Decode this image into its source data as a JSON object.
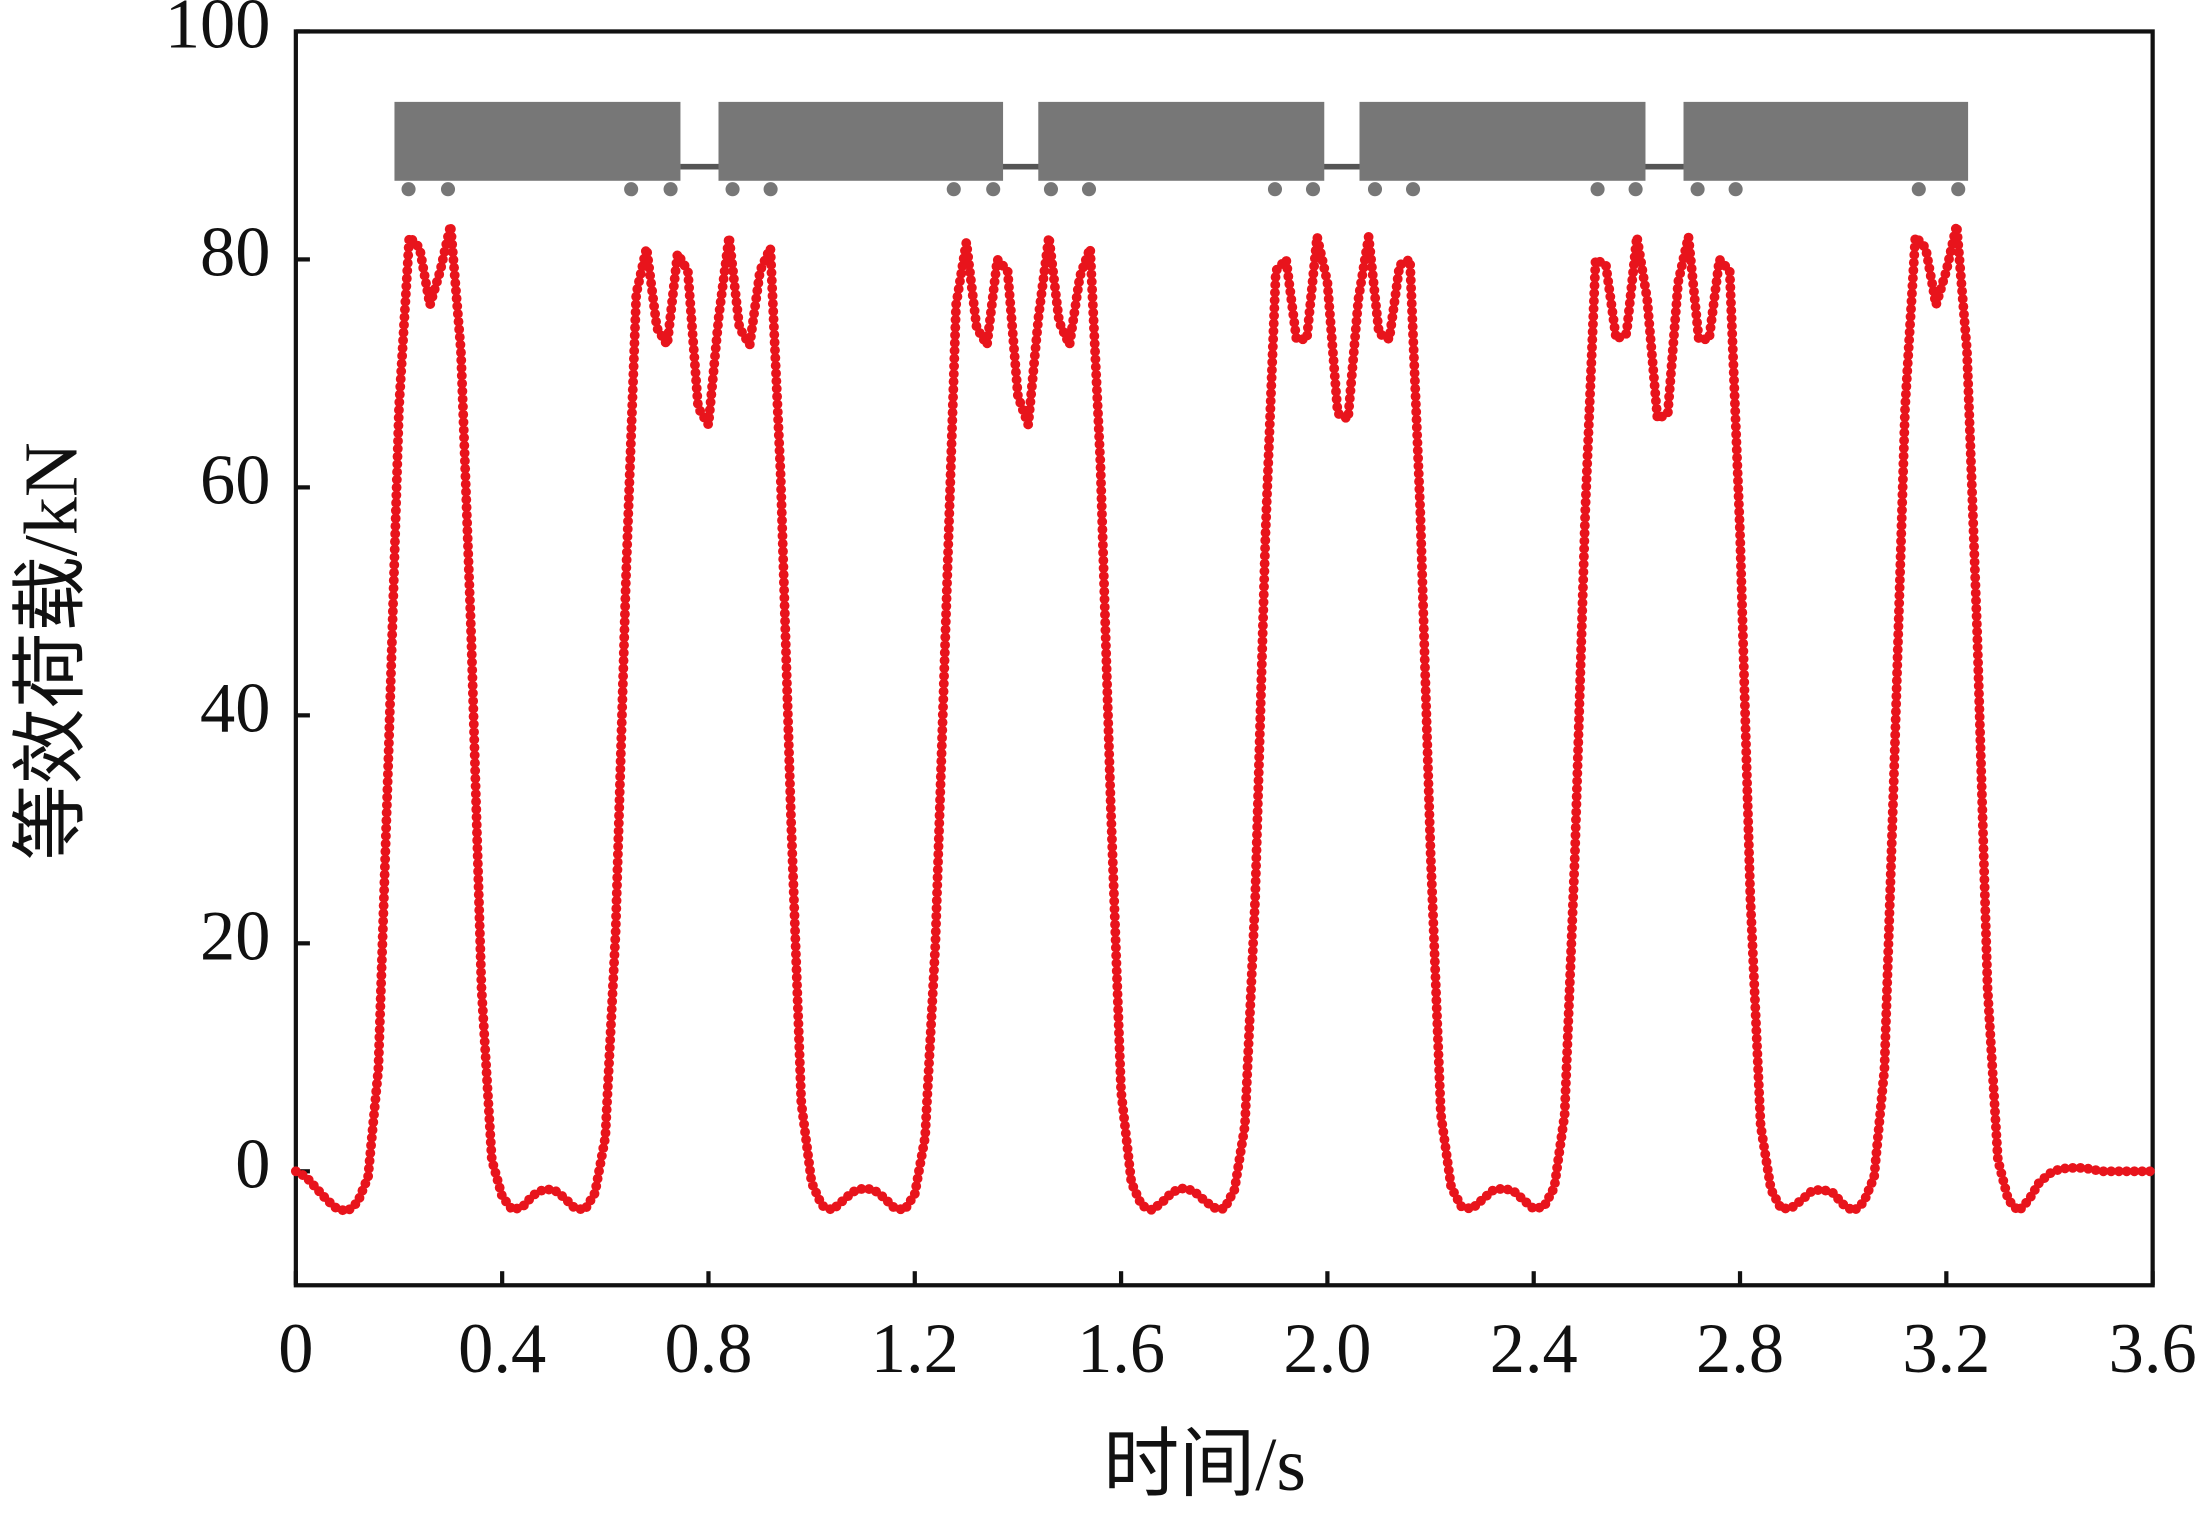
{
  "chart_data": {
    "type": "line",
    "x_label": "时间/s",
    "y_label": "等效荷载/kN",
    "xlim": [
      0,
      3.6
    ],
    "ylim": [
      -10,
      100
    ],
    "xticks": [
      0,
      0.4,
      0.8,
      1.2,
      1.6,
      {
        "value": 2,
        "label": "2.0"
      },
      2.4,
      2.8,
      3.2,
      3.6
    ],
    "yticks": [
      0,
      20,
      40,
      60,
      80,
      100
    ],
    "x": [
      0,
      0.02,
      0.04,
      0.06,
      0.08,
      0.1,
      0.12,
      0.14,
      0.16,
      0.18,
      0.2,
      0.22,
      0.24,
      0.26,
      0.28,
      0.3,
      0.32,
      0.34,
      0.36,
      0.38,
      0.4,
      0.42,
      0.44,
      0.46,
      0.48,
      0.5,
      0.52,
      0.54,
      0.56,
      0.58,
      0.6,
      0.62,
      0.64,
      0.66,
      0.68,
      0.7,
      0.72,
      0.74,
      0.76,
      0.78,
      0.8,
      0.82,
      0.84,
      0.86,
      0.88,
      0.9,
      0.92,
      0.94,
      0.96,
      0.98,
      1,
      1.02,
      1.04,
      1.06,
      1.08,
      1.1,
      1.12,
      1.14,
      1.16,
      1.18,
      1.2,
      1.22,
      1.24,
      1.26,
      1.28,
      1.3,
      1.32,
      1.34,
      1.36,
      1.38,
      1.4,
      1.42,
      1.44,
      1.46,
      1.48,
      1.5,
      1.52,
      1.54,
      1.56,
      1.58,
      1.6,
      1.62,
      1.64,
      1.66,
      1.68,
      1.7,
      1.72,
      1.74,
      1.76,
      1.78,
      1.8,
      1.82,
      1.84,
      1.86,
      1.88,
      1.9,
      1.92,
      1.94,
      1.96,
      1.98,
      2,
      2.02,
      2.04,
      2.06,
      2.08,
      2.1,
      2.12,
      2.14,
      2.16,
      2.18,
      2.2,
      2.22,
      2.24,
      2.26,
      2.28,
      2.3,
      2.32,
      2.34,
      2.36,
      2.38,
      2.4,
      2.42,
      2.44,
      2.46,
      2.48,
      2.5,
      2.52,
      2.54,
      2.56,
      2.58,
      2.6,
      2.62,
      2.64,
      2.66,
      2.68,
      2.7,
      2.72,
      2.74,
      2.76,
      2.78,
      2.8,
      2.82,
      2.84,
      2.86,
      2.88,
      2.9,
      2.92,
      2.94,
      2.96,
      2.98,
      3,
      3.02,
      3.04,
      3.06,
      3.08,
      3.1,
      3.12,
      3.14,
      3.16,
      3.18,
      3.2,
      3.22,
      3.24,
      3.26,
      3.28,
      3.3,
      3.32,
      3.34,
      3.36,
      3.38,
      3.4,
      3.42,
      3.44,
      3.46,
      3.48,
      3.5,
      3.52,
      3.54,
      3.56,
      3.58,
      3.6
    ],
    "series": [
      {
        "color": "#e8141c",
        "values": [
          0,
          -0.5,
          -1.5,
          -2.5,
          -3.3,
          -3.5,
          -2.7,
          -0.5,
          9,
          37,
          67,
          82,
          81,
          76,
          79,
          83,
          72,
          47,
          16,
          1,
          -2.2,
          -3.4,
          -3.1,
          -2.1,
          -1.6,
          -1.6,
          -2.3,
          -3.2,
          -3.4,
          -1.9,
          3,
          21,
          52,
          77,
          81,
          74,
          72.5,
          80.5,
          79,
          67,
          65.5,
          75,
          82,
          74,
          72.5,
          79,
          81,
          61,
          31,
          6,
          -1,
          -3,
          -3.4,
          -2.6,
          -1.8,
          -1.5,
          -1.6,
          -2.3,
          -3.2,
          -3.4,
          -2,
          3,
          20,
          48,
          76,
          81.5,
          74,
          72.5,
          80,
          79,
          68,
          65.5,
          75,
          82,
          74.5,
          72.5,
          78.5,
          81,
          62,
          32,
          7,
          -1,
          -3,
          -3.4,
          -2.7,
          -1.8,
          -1.5,
          -1.7,
          -2.5,
          -3.2,
          -3.3,
          -1.6,
          4,
          24,
          56,
          79,
          80,
          73,
          73,
          82,
          78,
          66.5,
          66,
          76.5,
          82,
          73.5,
          73,
          79.5,
          80,
          58,
          28,
          5,
          -1.4,
          -3.1,
          -3.3,
          -2.5,
          -1.7,
          -1.5,
          -1.7,
          -2.5,
          -3.3,
          -3.1,
          -1.4,
          5,
          28,
          58,
          80,
          79.5,
          73,
          73.5,
          82,
          76.5,
          66,
          66.5,
          78,
          82,
          73,
          73,
          80,
          79,
          56,
          24,
          4,
          -1.6,
          -3.3,
          -3.2,
          -2.5,
          -1.7,
          -1.6,
          -1.9,
          -2.9,
          -3.5,
          -2.7,
          -0.5,
          9,
          37,
          67,
          82,
          81,
          76,
          79,
          83,
          72,
          47,
          16,
          1,
          -2.5,
          -3.5,
          -2.5,
          -1,
          -0.2,
          0.2,
          0.3,
          0.3,
          0.2,
          0,
          0,
          0,
          0,
          0,
          0
        ]
      }
    ]
  }
}
